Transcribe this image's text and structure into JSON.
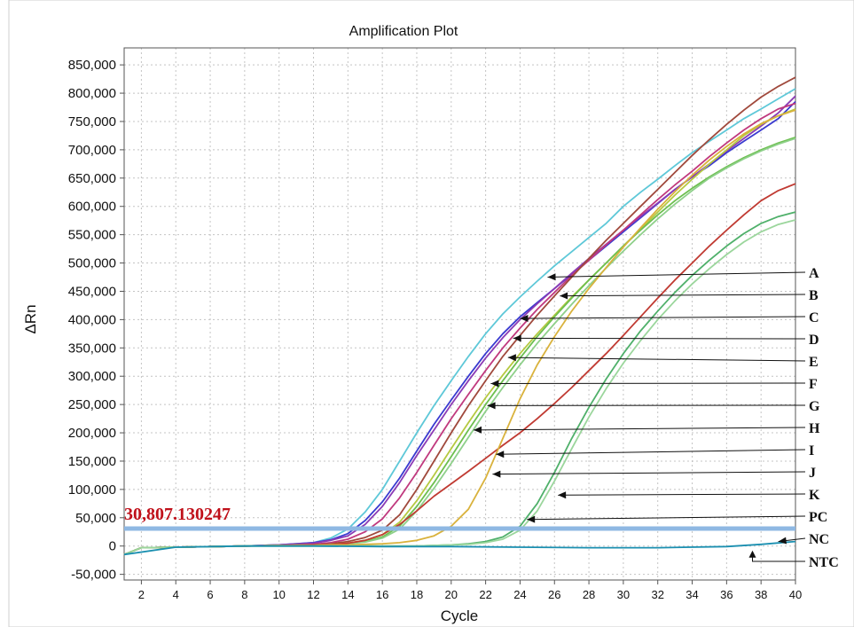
{
  "chart_data": {
    "type": "line",
    "title": "Amplification Plot",
    "xlabel": "Cycle",
    "ylabel": "ΔRn",
    "xlim": [
      1,
      40
    ],
    "ylim": [
      -60000,
      880000
    ],
    "x_ticks": [
      2,
      4,
      6,
      8,
      10,
      12,
      14,
      16,
      18,
      20,
      22,
      24,
      26,
      28,
      30,
      32,
      34,
      36,
      38,
      40
    ],
    "x_tick_labels": [
      "2",
      "4",
      "6",
      "8",
      "10",
      "12",
      "14",
      "16",
      "18",
      "20",
      "22",
      "24",
      "26",
      "28",
      "30",
      "32",
      "34",
      "36",
      "38",
      "40"
    ],
    "y_ticks": [
      -50000,
      0,
      50000,
      100000,
      150000,
      200000,
      250000,
      300000,
      350000,
      400000,
      450000,
      500000,
      550000,
      600000,
      650000,
      700000,
      750000,
      800000,
      850000
    ],
    "y_tick_labels": [
      "-50,000",
      "0",
      "50,000",
      "100,000",
      "150,000",
      "200,000",
      "250,000",
      "300,000",
      "350,000",
      "400,000",
      "450,000",
      "500,000",
      "550,000",
      "600,000",
      "650,000",
      "700,000",
      "750,000",
      "800,000",
      "850,000"
    ],
    "grid": true,
    "threshold": {
      "value": 30807.130247,
      "label": "30,807.130247",
      "color": "#8fb8e3"
    },
    "series": [
      {
        "color": "#5ec8d8",
        "x": [
          1,
          2,
          4,
          8,
          10,
          12,
          13,
          14,
          15,
          16,
          17,
          18,
          19,
          20,
          21,
          22,
          23,
          24,
          25,
          26,
          27,
          28,
          29,
          30,
          31,
          32,
          33,
          34,
          35,
          36,
          37,
          38,
          39,
          40
        ],
        "values": [
          -15000,
          -3000,
          -2000,
          0,
          2000,
          6000,
          14000,
          30000,
          60000,
          100000,
          150000,
          200000,
          248000,
          292000,
          335000,
          375000,
          410000,
          440000,
          468000,
          495000,
          520000,
          545000,
          570000,
          600000,
          625000,
          648000,
          672000,
          695000,
          715000,
          735000,
          755000,
          772000,
          790000,
          808000
        ]
      },
      {
        "color": "#3a3ad0",
        "x": [
          1,
          2,
          4,
          8,
          10,
          12,
          13,
          14,
          15,
          16,
          17,
          18,
          19,
          20,
          21,
          22,
          23,
          24,
          25,
          26,
          27,
          28,
          29,
          30,
          31,
          32,
          33,
          34,
          35,
          36,
          37,
          38,
          39,
          40
        ],
        "values": [
          -15000,
          -3000,
          -2000,
          0,
          2000,
          6000,
          11000,
          22000,
          45000,
          78000,
          120000,
          168000,
          215000,
          258000,
          300000,
          340000,
          375000,
          405000,
          430000,
          455000,
          480000,
          505000,
          530000,
          555000,
          580000,
          605000,
          630000,
          652000,
          672000,
          695000,
          715000,
          735000,
          755000,
          785000
        ]
      },
      {
        "color": "#8b3bb5",
        "x": [
          1,
          2,
          4,
          8,
          10,
          12,
          13,
          14,
          15,
          16,
          17,
          18,
          19,
          20,
          21,
          22,
          23,
          24,
          25,
          26,
          27,
          28,
          29,
          30,
          31,
          32,
          33,
          34,
          35,
          36,
          37,
          38,
          39,
          40
        ],
        "values": [
          -15000,
          -3000,
          -2000,
          0,
          2000,
          5000,
          10000,
          18000,
          38000,
          70000,
          112000,
          160000,
          205000,
          250000,
          292000,
          332000,
          368000,
          400000,
          428000,
          455000,
          482000,
          508000,
          533000,
          558000,
          582000,
          606000,
          630000,
          652000,
          675000,
          698000,
          720000,
          742000,
          765000,
          795000
        ]
      },
      {
        "color": "#c0397e",
        "x": [
          1,
          2,
          4,
          8,
          10,
          12,
          13,
          14,
          15,
          16,
          17,
          18,
          19,
          20,
          21,
          22,
          23,
          24,
          25,
          26,
          27,
          28,
          29,
          30,
          31,
          32,
          33,
          34,
          35,
          36,
          37,
          38,
          39,
          40
        ],
        "values": [
          -15000,
          -3000,
          -2000,
          0,
          1000,
          3000,
          6000,
          12000,
          25000,
          48000,
          85000,
          130000,
          178000,
          225000,
          268000,
          310000,
          350000,
          385000,
          418000,
          448000,
          478000,
          505000,
          532000,
          558000,
          585000,
          612000,
          638000,
          662000,
          688000,
          712000,
          735000,
          755000,
          772000,
          782000
        ]
      },
      {
        "color": "#a0493c",
        "x": [
          1,
          2,
          4,
          8,
          10,
          12,
          13,
          14,
          15,
          16,
          17,
          18,
          19,
          20,
          21,
          22,
          23,
          24,
          25,
          26,
          27,
          28,
          29,
          30,
          31,
          32,
          33,
          34,
          35,
          36,
          37,
          38,
          39,
          40
        ],
        "values": [
          -15000,
          -3000,
          -2000,
          0,
          1000,
          2000,
          4000,
          8000,
          15000,
          28000,
          55000,
          100000,
          150000,
          200000,
          248000,
          292000,
          335000,
          372000,
          408000,
          442000,
          475000,
          508000,
          540000,
          570000,
          600000,
          630000,
          660000,
          690000,
          718000,
          745000,
          770000,
          793000,
          812000,
          828000
        ]
      },
      {
        "color": "#b5c940",
        "x": [
          1,
          2,
          4,
          8,
          10,
          12,
          13,
          14,
          15,
          16,
          17,
          18,
          19,
          20,
          21,
          22,
          23,
          24,
          25,
          26,
          27,
          28,
          29,
          30,
          31,
          32,
          33,
          34,
          35,
          36,
          37,
          38,
          39,
          40
        ],
        "values": [
          -15000,
          -3000,
          -2000,
          0,
          1000,
          2000,
          3000,
          5000,
          10000,
          20000,
          42000,
          80000,
          125000,
          172000,
          218000,
          262000,
          302000,
          340000,
          375000,
          408000,
          440000,
          470000,
          500000,
          530000,
          560000,
          590000,
          620000,
          648000,
          675000,
          700000,
          725000,
          745000,
          760000,
          772000
        ]
      },
      {
        "color": "#6dbf4f",
        "x": [
          1,
          2,
          4,
          8,
          10,
          12,
          13,
          14,
          15,
          16,
          17,
          18,
          19,
          20,
          21,
          22,
          23,
          24,
          25,
          26,
          27,
          28,
          29,
          30,
          31,
          32,
          33,
          34,
          35,
          36,
          37,
          38,
          39,
          40
        ],
        "values": [
          -15000,
          -3000,
          -2000,
          0,
          1000,
          2000,
          3000,
          4000,
          8000,
          16000,
          35000,
          70000,
          112000,
          158000,
          205000,
          250000,
          292000,
          332000,
          370000,
          405000,
          438000,
          470000,
          500000,
          530000,
          558000,
          585000,
          610000,
          632000,
          652000,
          670000,
          686000,
          700000,
          712000,
          722000
        ]
      },
      {
        "color": "#8ed08a",
        "x": [
          1,
          2,
          4,
          8,
          10,
          12,
          13,
          14,
          15,
          16,
          17,
          18,
          19,
          20,
          21,
          22,
          23,
          24,
          25,
          26,
          27,
          28,
          29,
          30,
          31,
          32,
          33,
          34,
          35,
          36,
          37,
          38,
          39,
          40
        ],
        "values": [
          -15000,
          -3000,
          -2000,
          0,
          1000,
          2000,
          3000,
          4000,
          7000,
          14000,
          30000,
          62000,
          102000,
          146000,
          192000,
          238000,
          280000,
          320000,
          358000,
          393000,
          427000,
          460000,
          491000,
          521000,
          550000,
          578000,
          604000,
          628000,
          650000,
          668000,
          684000,
          698000,
          710000,
          720000
        ]
      },
      {
        "color": "#c03a32",
        "x": [
          1,
          2,
          4,
          8,
          10,
          12,
          13,
          14,
          15,
          16,
          17,
          18,
          19,
          20,
          21,
          22,
          23,
          24,
          25,
          26,
          27,
          28,
          29,
          30,
          31,
          32,
          33,
          34,
          35,
          36,
          37,
          38,
          39,
          40
        ],
        "values": [
          -15000,
          -3000,
          -2000,
          0,
          1000,
          2000,
          3000,
          5000,
          10000,
          20000,
          38000,
          62000,
          88000,
          110000,
          132000,
          155000,
          178000,
          200000,
          225000,
          252000,
          280000,
          310000,
          340000,
          372000,
          405000,
          438000,
          470000,
          500000,
          530000,
          558000,
          585000,
          610000,
          628000,
          640000
        ]
      },
      {
        "color": "#d9b23c",
        "x": [
          1,
          2,
          4,
          8,
          10,
          12,
          13,
          14,
          15,
          16,
          17,
          18,
          19,
          20,
          21,
          22,
          23,
          24,
          25,
          26,
          27,
          28,
          29,
          30,
          31,
          32,
          33,
          34,
          35,
          36,
          37,
          38,
          39,
          40
        ],
        "values": [
          -15000,
          -3000,
          -2000,
          0,
          1000,
          1000,
          2000,
          2000,
          3000,
          4000,
          6000,
          10000,
          18000,
          35000,
          65000,
          120000,
          190000,
          260000,
          320000,
          370000,
          415000,
          455000,
          492000,
          528000,
          562000,
          595000,
          626000,
          655000,
          682000,
          706000,
          728000,
          746000,
          760000,
          770000
        ]
      },
      {
        "color": "#4fb06a",
        "x": [
          1,
          2,
          4,
          8,
          10,
          12,
          14,
          16,
          18,
          20,
          21,
          22,
          23,
          24,
          25,
          26,
          27,
          28,
          29,
          30,
          31,
          32,
          33,
          34,
          35,
          36,
          37,
          38,
          39,
          40
        ],
        "values": [
          -15000,
          -3000,
          -2000,
          0,
          0,
          0,
          0,
          0,
          0,
          2000,
          4000,
          8000,
          16000,
          35000,
          75000,
          130000,
          190000,
          245000,
          295000,
          340000,
          380000,
          415000,
          448000,
          478000,
          505000,
          530000,
          552000,
          570000,
          582000,
          590000
        ]
      },
      {
        "color": "#9bd69c",
        "x": [
          1,
          2,
          4,
          8,
          10,
          12,
          14,
          16,
          18,
          20,
          21,
          22,
          23,
          24,
          25,
          26,
          27,
          28,
          29,
          30,
          31,
          32,
          33,
          34,
          35,
          36,
          37,
          38,
          39,
          40
        ],
        "values": [
          -15000,
          -3000,
          -2000,
          0,
          0,
          0,
          0,
          0,
          0,
          2000,
          3000,
          6000,
          12000,
          28000,
          62000,
          115000,
          172000,
          228000,
          278000,
          323000,
          363000,
          400000,
          433000,
          463000,
          490000,
          515000,
          537000,
          555000,
          568000,
          576000
        ]
      },
      {
        "color": "#1a8fb0",
        "x": [
          1,
          4,
          8,
          12,
          16,
          20,
          24,
          28,
          32,
          36,
          38,
          40
        ],
        "values": [
          -15000,
          -2000,
          0,
          0,
          -1000,
          -1000,
          -2000,
          -3000,
          -3000,
          -1000,
          3000,
          8000
        ]
      }
    ],
    "annotations": [
      {
        "label": "A",
        "x": 25.6,
        "y": 475000
      },
      {
        "label": "B",
        "x": 26.3,
        "y": 442000
      },
      {
        "label": "C",
        "x": 24.0,
        "y": 402000
      },
      {
        "label": "D",
        "x": 23.6,
        "y": 367000
      },
      {
        "label": "E",
        "x": 23.3,
        "y": 333000
      },
      {
        "label": "F",
        "x": 22.3,
        "y": 287000
      },
      {
        "label": "G",
        "x": 22.1,
        "y": 248000
      },
      {
        "label": "H",
        "x": 21.3,
        "y": 205000
      },
      {
        "label": "I",
        "x": 22.6,
        "y": 162000
      },
      {
        "label": "J",
        "x": 22.4,
        "y": 127000
      },
      {
        "label": "K",
        "x": 26.2,
        "y": 90000
      },
      {
        "label": "PC",
        "x": 24.4,
        "y": 47000
      },
      {
        "label": "NC",
        "x": 39.0,
        "y": 8000
      },
      {
        "label": "NTC",
        "x": 37.5,
        "y": -8000
      }
    ]
  }
}
